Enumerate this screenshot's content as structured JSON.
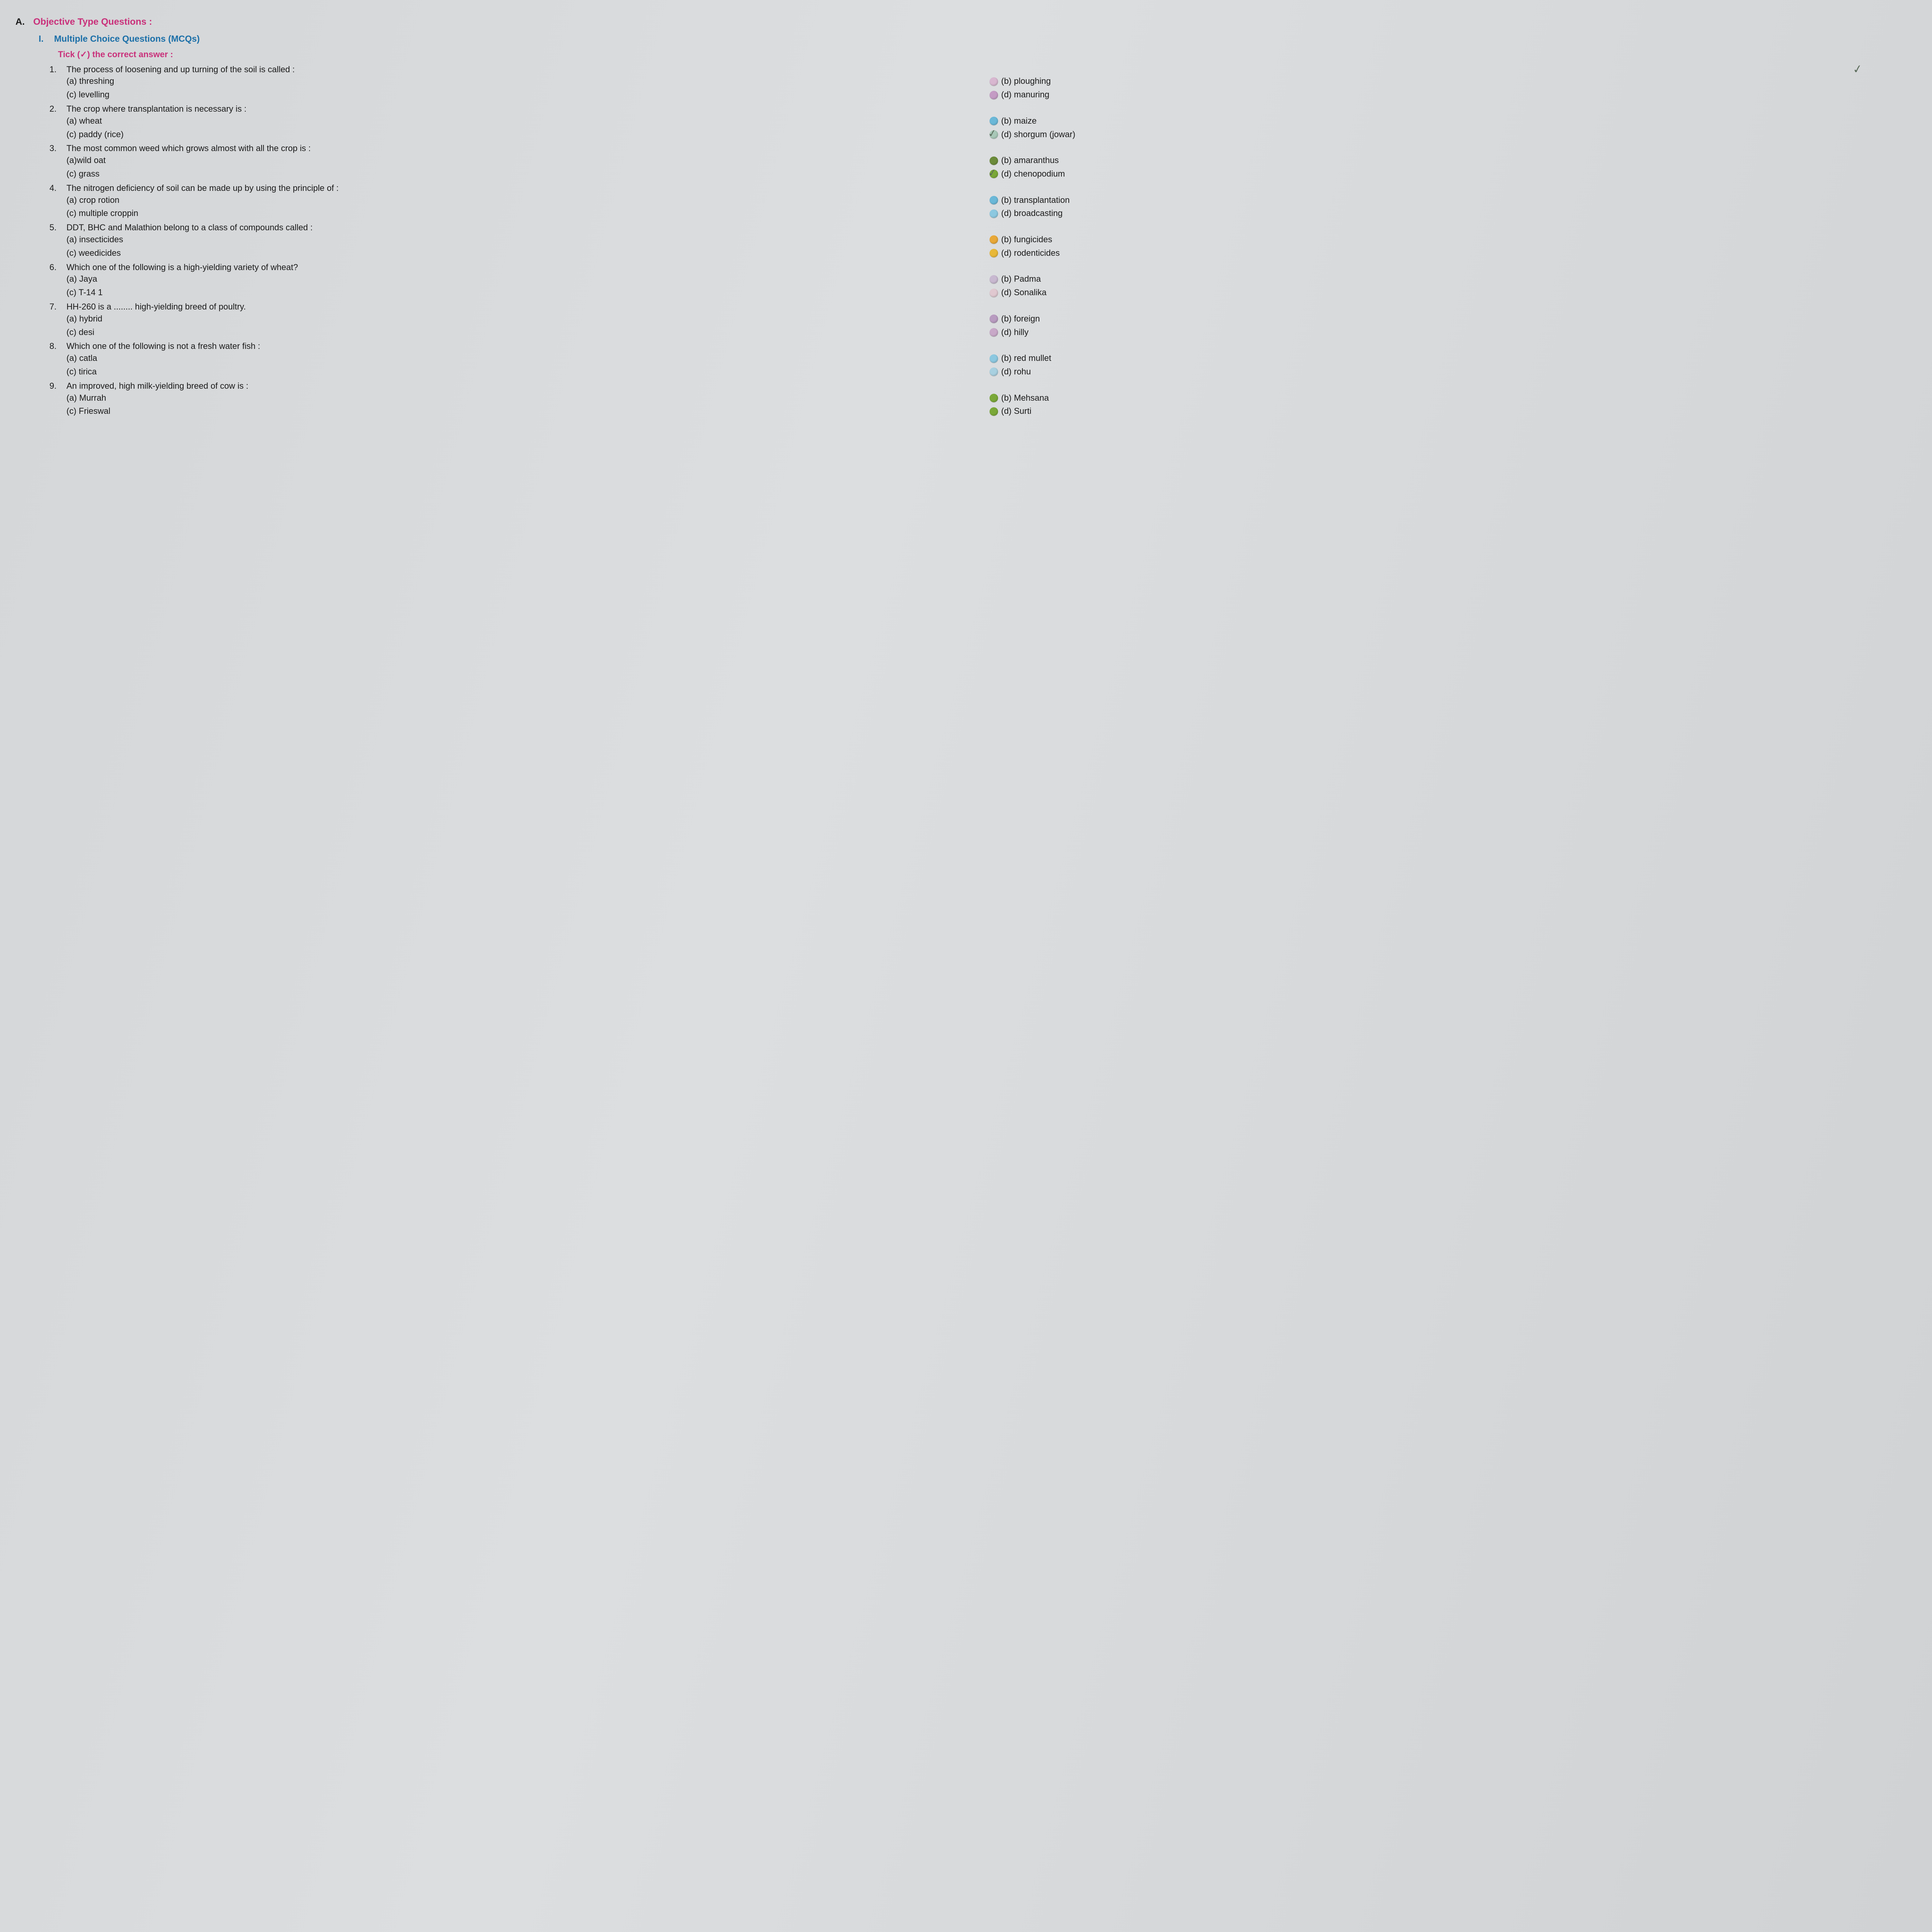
{
  "colors": {
    "section_title": "#c9307a",
    "sub_title": "#1b6fa8",
    "instruction": "#c9307a",
    "text": "#1a1a1a",
    "tick": "#5a6b5a"
  },
  "section": {
    "letter": "A.",
    "title": "Objective Type Questions :"
  },
  "subsection": {
    "num": "I.",
    "title": "Multiple Choice Questions (MCQs)"
  },
  "instruction": "Tick (✓) the correct answer :",
  "questions": [
    {
      "num": "1.",
      "text": "The process of loosening and up turning of the soil is called :",
      "tick_after": true,
      "options": [
        {
          "label": "(a) threshing",
          "color": null
        },
        {
          "label": "(b) ploughing",
          "color": "#d8b7d0"
        },
        {
          "label": "(c) levelling",
          "color": null
        },
        {
          "label": "(d) manuring",
          "color": "#c49bc4"
        }
      ]
    },
    {
      "num": "2.",
      "text": "The crop where transplantation is necessary is :",
      "options": [
        {
          "label": "(a) wheat",
          "color": null
        },
        {
          "label": "(b) maize",
          "color": "#6bb8d8"
        },
        {
          "label": "(c) paddy (rice)",
          "color": null
        },
        {
          "label": "(d) shorgum (jowar)",
          "color": "#a8c8b8",
          "tick_on": true
        }
      ]
    },
    {
      "num": "3.",
      "text": "The most common weed which grows almost with all the crop is :",
      "options": [
        {
          "label": "(a)wild oat",
          "color": null
        },
        {
          "label": "(b) amaranthus",
          "color": "#6b8b3a"
        },
        {
          "label": "(c) grass",
          "color": null
        },
        {
          "label": "(d) chenopodium",
          "color": "#7aa838",
          "tick_on": true
        }
      ]
    },
    {
      "num": "4.",
      "text": "The nitrogen deficiency of soil can be made up by using the principle of :",
      "options": [
        {
          "label": "(a) crop rotion",
          "color": null
        },
        {
          "label": "(b) transplantation",
          "color": "#6bb8d8"
        },
        {
          "label": "(c) multiple croppin",
          "color": null
        },
        {
          "label": "(d) broadcasting",
          "color": "#8cc8e0"
        }
      ]
    },
    {
      "num": "5.",
      "text": "DDT, BHC and Malathion belong to a class of compounds called :",
      "options": [
        {
          "label": "(a) insecticides",
          "color": null
        },
        {
          "label": "(b) fungicides",
          "color": "#e8a838"
        },
        {
          "label": "(c) weedicides",
          "color": null
        },
        {
          "label": "(d) rodenticides",
          "color": "#e8b838"
        }
      ]
    },
    {
      "num": "6.",
      "text": "Which one of the following is a high-yielding variety of wheat?",
      "options": [
        {
          "label": "(a) Jaya",
          "color": null
        },
        {
          "label": "(b) Padma",
          "color": "#c8b8d0"
        },
        {
          "label": "(c) T-14 1",
          "color": null
        },
        {
          "label": "(d) Sonalika",
          "color": "#e0c8d0"
        }
      ]
    },
    {
      "num": "7.",
      "text": "HH-260 is a ........ high-yielding breed of poultry.",
      "options": [
        {
          "label": "(a) hybrid",
          "color": null
        },
        {
          "label": "(b) foreign",
          "color": "#b89bc0"
        },
        {
          "label": "(c) desi",
          "color": null
        },
        {
          "label": "(d) hilly",
          "color": "#c8a8c8"
        }
      ]
    },
    {
      "num": "8.",
      "text": "Which one of the following is not a fresh water fish :",
      "options": [
        {
          "label": "(a) catla",
          "color": null
        },
        {
          "label": "(b) red mullet",
          "color": "#8cc8e0"
        },
        {
          "label": "(c) tirica",
          "color": null
        },
        {
          "label": "(d) rohu",
          "color": "#a8d0e0"
        }
      ]
    },
    {
      "num": "9.",
      "text": "An improved, high milk-yielding breed of cow is :",
      "options": [
        {
          "label": "(a) Murrah",
          "color": null
        },
        {
          "label": "(b) Mehsana",
          "color": "#7aa838"
        },
        {
          "label": "(c) Frieswal",
          "color": null
        },
        {
          "label": "(d) Surti",
          "color": "#7aa838"
        }
      ]
    }
  ]
}
